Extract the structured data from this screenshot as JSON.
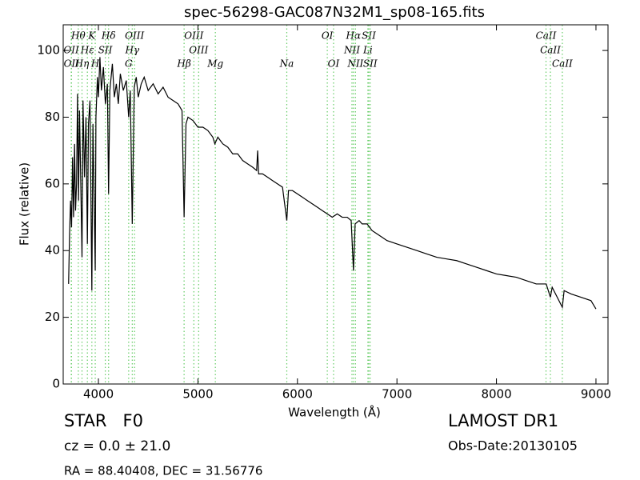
{
  "chart_data": {
    "type": "line",
    "title": "spec-56298-GAC087N32M1_sp08-165.fits",
    "x_label": "Wavelength (Å)",
    "y_label": "Flux (relative)",
    "xlim": [
      3646,
      9121
    ],
    "ylim": [
      0,
      107.7
    ],
    "xticks": [
      4000,
      5000,
      6000,
      7000,
      8000,
      9000
    ],
    "yticks": [
      0,
      20,
      40,
      60,
      80,
      100
    ],
    "x": [
      3700,
      3710,
      3720,
      3730,
      3740,
      3750,
      3760,
      3770,
      3780,
      3790,
      3800,
      3810,
      3820,
      3835,
      3845,
      3860,
      3875,
      3889,
      3900,
      3915,
      3934,
      3945,
      3968,
      3975,
      3990,
      4000,
      4015,
      4030,
      4050,
      4070,
      4090,
      4102,
      4115,
      4140,
      4160,
      4180,
      4200,
      4220,
      4250,
      4280,
      4304,
      4320,
      4340,
      4360,
      4380,
      4400,
      4430,
      4460,
      4500,
      4550,
      4600,
      4650,
      4700,
      4750,
      4800,
      4840,
      4861,
      4880,
      4900,
      4950,
      5000,
      5050,
      5100,
      5150,
      5170,
      5200,
      5250,
      5300,
      5350,
      5400,
      5450,
      5500,
      5550,
      5590,
      5600,
      5610,
      5650,
      5700,
      5750,
      5800,
      5850,
      5893,
      5910,
      5950,
      6000,
      6050,
      6100,
      6150,
      6200,
      6250,
      6300,
      6350,
      6400,
      6450,
      6500,
      6540,
      6563,
      6580,
      6620,
      6650,
      6700,
      6750,
      6800,
      6850,
      6900,
      7000,
      7100,
      7200,
      7300,
      7400,
      7500,
      7600,
      7700,
      7800,
      7900,
      8000,
      8100,
      8200,
      8300,
      8400,
      8500,
      8542,
      8560,
      8662,
      8680,
      8750,
      8850,
      8950,
      9000
    ],
    "series": [
      {
        "color": "#000000",
        "values": [
          30,
          45,
          55,
          47,
          68,
          50,
          72,
          52,
          60,
          87,
          55,
          82,
          65,
          38,
          85,
          62,
          80,
          42,
          78,
          85,
          28,
          78,
          34,
          80,
          92,
          86,
          98,
          88,
          95,
          84,
          90,
          57,
          88,
          96,
          86,
          90,
          84,
          93,
          88,
          91,
          80,
          88,
          48,
          89,
          92,
          86,
          90,
          92,
          88,
          90,
          87,
          89,
          86,
          85,
          84,
          82,
          50,
          78,
          80,
          79,
          77,
          77,
          76,
          74,
          72,
          74,
          72,
          71,
          69,
          69,
          67,
          66,
          65,
          64,
          70,
          63,
          63,
          62,
          61,
          60,
          59,
          49,
          58,
          58,
          57,
          56,
          55,
          54,
          53,
          52,
          51,
          50,
          51,
          50,
          50,
          49,
          34,
          48,
          49,
          48,
          48,
          46,
          45,
          44,
          43,
          42,
          41,
          40,
          39,
          38,
          37.5,
          37,
          36,
          35,
          34,
          33,
          32.5,
          32,
          31,
          30,
          30,
          26,
          29,
          23,
          28,
          27,
          26,
          25,
          22.5
        ]
      }
    ],
    "line_marker_color": "#66cc66",
    "spectral_lines": [
      [
        {
          "name": "Hθ",
          "wavelength": 3798
        },
        {
          "name": "K",
          "wavelength": 3934
        },
        {
          "name": "Hδ",
          "wavelength": 4102
        },
        {
          "name": "OIII",
          "wavelength": 4363
        },
        {
          "name": "OIII",
          "wavelength": 4959
        },
        {
          "name": "OI",
          "wavelength": 6300
        },
        {
          "name": "Hα",
          "wavelength": 6563
        },
        {
          "name": "SII",
          "wavelength": 6717
        },
        {
          "name": "CaII",
          "wavelength": 8498
        }
      ],
      [
        {
          "name": "OII",
          "wavelength": 3727
        },
        {
          "name": "Hε",
          "wavelength": 3889
        },
        {
          "name": "SII",
          "wavelength": 4069
        },
        {
          "name": "Hγ",
          "wavelength": 4340
        },
        {
          "name": "OIII",
          "wavelength": 5007
        },
        {
          "name": "NII",
          "wavelength": 6548
        },
        {
          "name": "Li",
          "wavelength": 6708
        },
        {
          "name": "CaII",
          "wavelength": 8542
        }
      ],
      [
        {
          "name": "OII",
          "wavelength": 3729
        },
        {
          "name": "Hη",
          "wavelength": 3835
        },
        {
          "name": "H",
          "wavelength": 3968
        },
        {
          "name": "G",
          "wavelength": 4304
        },
        {
          "name": "Hβ",
          "wavelength": 4861
        },
        {
          "name": "Mg",
          "wavelength": 5175
        },
        {
          "name": "Na",
          "wavelength": 5893
        },
        {
          "name": "OI",
          "wavelength": 6363
        },
        {
          "name": "NII",
          "wavelength": 6583
        },
        {
          "name": "SII",
          "wavelength": 6731
        },
        {
          "name": "CaII",
          "wavelength": 8662
        }
      ]
    ]
  },
  "info": {
    "object": "STAR   F0",
    "cz": "cz = 0.0 ± 21.0",
    "coords": "RA = 88.40408, DEC = 31.56776",
    "survey": "LAMOST DR1",
    "obs_date": "Obs-Date:20130105"
  }
}
